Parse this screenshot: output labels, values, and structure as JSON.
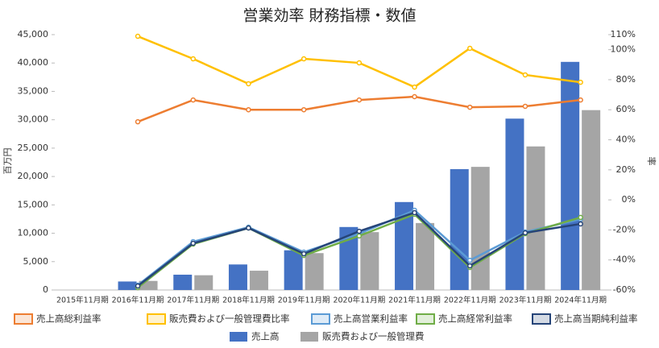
{
  "chart_data": {
    "type": "bar-line",
    "title": "営業効率 財務指標・数値",
    "y_label": "百万円",
    "y2_label": "率",
    "categories": [
      "2015年11月期",
      "2016年11月期",
      "2017年11月期",
      "2018年11月期",
      "2019年11月期",
      "2020年11月期",
      "2021年11月期",
      "2022年11月期",
      "2023年11月期",
      "2024年11月期"
    ],
    "ylim": [
      0,
      45000
    ],
    "yticks": [
      {
        "value": 0,
        "label": "0"
      },
      {
        "value": 5000,
        "label": "5,000"
      },
      {
        "value": 10000,
        "label": "10,000"
      },
      {
        "value": 15000,
        "label": "15,000"
      },
      {
        "value": 20000,
        "label": "20,000"
      },
      {
        "value": 25000,
        "label": "25,000"
      },
      {
        "value": 30000,
        "label": "30,000"
      },
      {
        "value": 35000,
        "label": "35,000"
      },
      {
        "value": 40000,
        "label": "40,000"
      },
      {
        "value": 45000,
        "label": "45,000"
      }
    ],
    "y2lim": [
      -60,
      110
    ],
    "y2ticks": [
      {
        "value": -60,
        "label": "-60%"
      },
      {
        "value": -40,
        "label": "-40%"
      },
      {
        "value": -20,
        "label": "-20%"
      },
      {
        "value": 0,
        "label": "0%"
      },
      {
        "value": 20,
        "label": "20%"
      },
      {
        "value": 40,
        "label": "40%"
      },
      {
        "value": 60,
        "label": "60%"
      },
      {
        "value": 80,
        "label": "80%"
      },
      {
        "value": 100,
        "label": "100%"
      },
      {
        "value": 110,
        "label": "110%"
      }
    ],
    "series": [
      {
        "name": "売上高総利益率",
        "type": "line",
        "axis": "y2",
        "color": "#ed7d31",
        "values": [
          null,
          52,
          66.5,
          60,
          60,
          66.5,
          68.7,
          61.7,
          62.3,
          66.5
        ]
      },
      {
        "name": "販売費および一般管理費比率",
        "type": "line",
        "axis": "y2",
        "color": "#ffc000",
        "values": [
          null,
          108.9,
          93.9,
          77.3,
          93.9,
          91.2,
          75.1,
          100.9,
          83.2,
          78.3
        ]
      },
      {
        "name": "売上高営業利益率",
        "type": "line",
        "axis": "y2",
        "color": "#5b9bd5",
        "values": [
          null,
          -56.8,
          -27.8,
          -18.2,
          -34.8,
          -22.5,
          -6.9,
          -40.2,
          -21.4,
          -12.8
        ]
      },
      {
        "name": "売上高経常利益率",
        "type": "line",
        "axis": "y2",
        "color": "#70ad47",
        "values": [
          null,
          -58.4,
          -29.4,
          -18.7,
          -37,
          -24,
          -9.6,
          -45,
          -22.5,
          -11.7
        ]
      },
      {
        "name": "売上高当期純利益率",
        "type": "line",
        "axis": "y2",
        "color": "#264478",
        "values": [
          null,
          -57.3,
          -28.9,
          -18.7,
          -35.9,
          -20.9,
          -8.5,
          -43.9,
          -21.9,
          -16
        ]
      },
      {
        "name": "売上高",
        "type": "bar",
        "color": "#4472c4",
        "values": [
          null,
          1500,
          2700,
          4500,
          7000,
          11100,
          15500,
          21300,
          30200,
          40200
        ]
      },
      {
        "name": "販売費および一般管理費",
        "type": "bar",
        "color": "#a5a5a5",
        "values": [
          null,
          1600,
          2600,
          3400,
          6500,
          10200,
          11800,
          21700,
          25300,
          31700
        ]
      }
    ]
  }
}
